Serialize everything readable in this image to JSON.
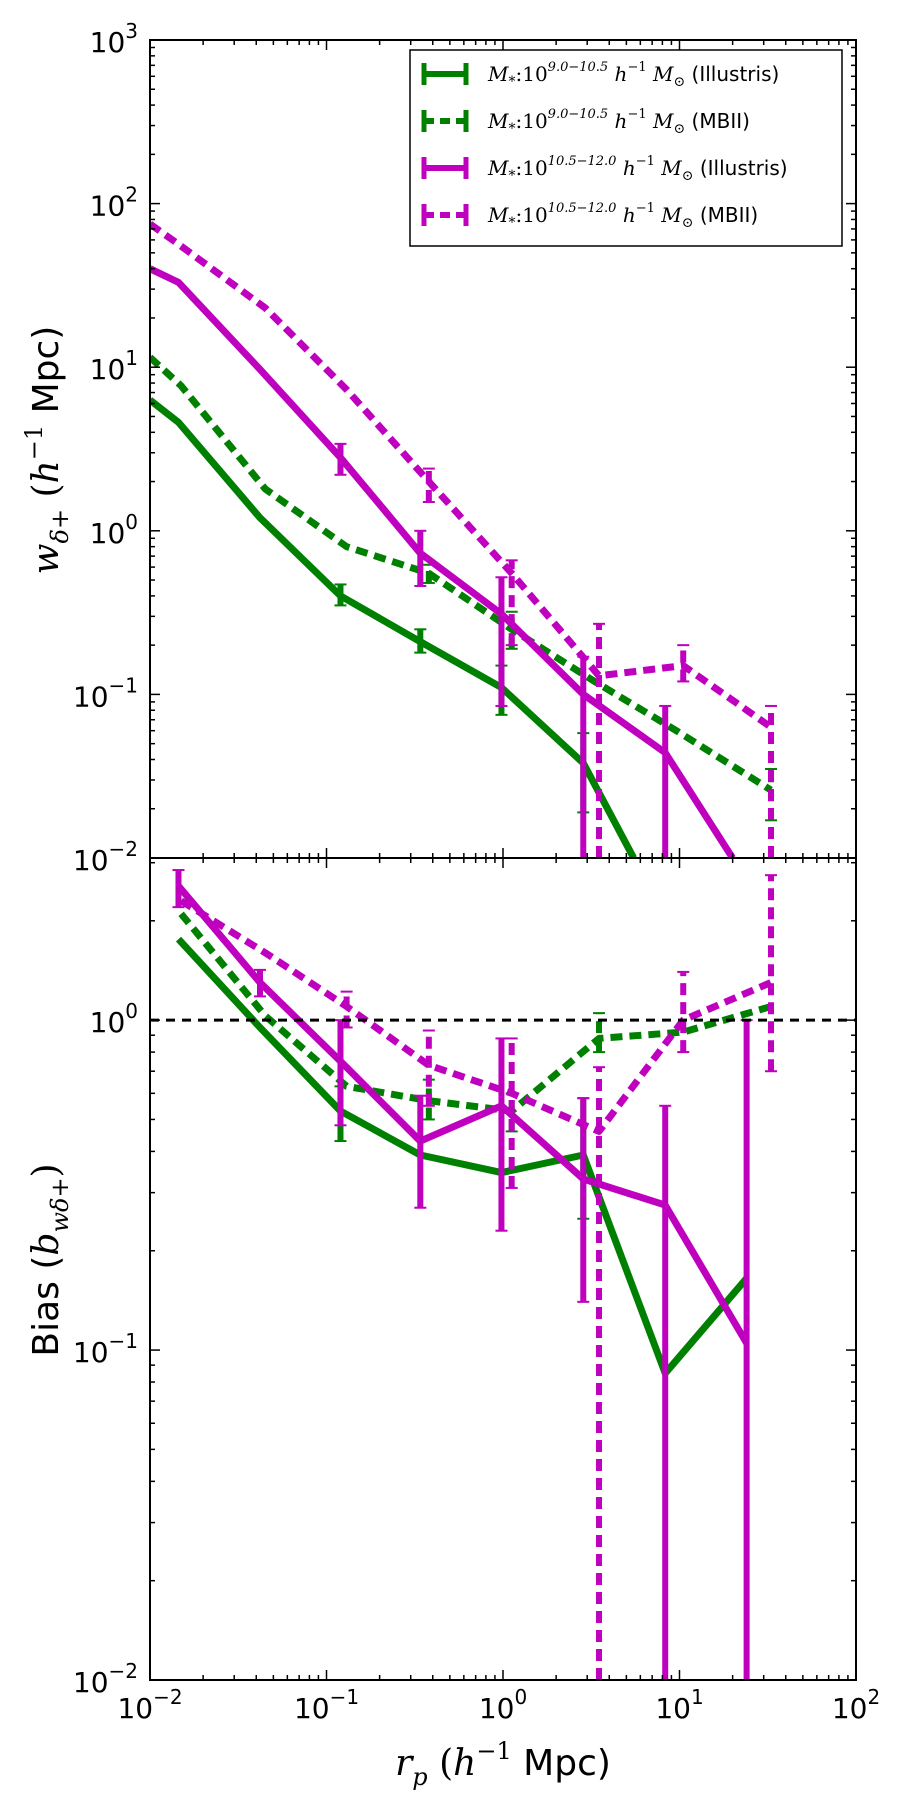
{
  "chart_data": [
    {
      "panel": "top",
      "type": "line",
      "xscale": "log",
      "yscale": "log",
      "xlim": [
        0.01,
        100
      ],
      "ylim": [
        0.01,
        1000
      ],
      "ylabel": "w_{δ+} (h^-1 Mpc)",
      "yticks": [
        "10^-2",
        "10^-1",
        "10^0",
        "10^1",
        "10^2",
        "10^3"
      ],
      "legend": {
        "placement": "top-right",
        "entries": [
          {
            "text": "M* : 10^{9.0-10.5} h^-1 M⊙ (Illustris)",
            "math": "M_*: 10",
            "sup": "9.0−10.5",
            "math2": " h",
            "sup2": "−1",
            "math3": " M",
            "sub3": "⊙",
            "tag": " (Illustris)",
            "series": 0
          },
          {
            "text": "M* : 10^{9.0-10.5} h^-1 M⊙ (MBII)",
            "math": "M_*: 10",
            "sup": "9.0−10.5",
            "math2": " h",
            "sup2": "−1",
            "math3": " M",
            "sub3": "⊙",
            "tag": " (MBII)",
            "series": 1
          },
          {
            "text": "M* : 10^{10.5-12.0} h^-1 M⊙ (Illustris)",
            "math": "M_*: 10",
            "sup": "10.5−12.0",
            "math2": " h",
            "sup2": "−1",
            "math3": " M",
            "sub3": "⊙",
            "tag": " (Illustris)",
            "series": 2
          },
          {
            "text": "M* : 10^{10.5-12.0} h^-1 M⊙ (MBII)",
            "math": "M_*: 10",
            "sup": "10.5−12.0",
            "math2": " h",
            "sup2": "−1",
            "math3": " M",
            "sub3": "⊙",
            "tag": " (MBII)",
            "series": 3
          }
        ]
      },
      "series": [
        {
          "name": "M* 10^9.0-10.5 (Illustris)",
          "color": "#008000",
          "style": "solid",
          "x": [
            0.01,
            0.0145,
            0.042,
            0.12,
            0.34,
            0.98,
            2.85,
            5.5
          ],
          "y": [
            6.3,
            4.6,
            1.2,
            0.4,
            0.21,
            0.11,
            0.038,
            0.01
          ],
          "err": [
            null,
            null,
            null,
            [
              0.35,
              0.47
            ],
            [
              0.18,
              0.25
            ],
            [
              0.075,
              0.15
            ],
            [
              0.019,
              0.058
            ],
            null
          ]
        },
        {
          "name": "M* 10^9.0-10.5 (MBII)",
          "color": "#008000",
          "style": "dotted",
          "x": [
            0.01,
            0.015,
            0.045,
            0.13,
            0.38,
            1.12,
            3.3,
            9.6,
            33
          ],
          "y": [
            11.5,
            7.7,
            1.8,
            0.8,
            0.55,
            0.25,
            0.12,
            0.06,
            0.026
          ],
          "err": [
            null,
            null,
            null,
            null,
            [
              0.48,
              0.62
            ],
            [
              0.19,
              0.32
            ],
            null,
            null,
            [
              0.017,
              0.035
            ]
          ]
        },
        {
          "name": "M* 10^10.5-12.0 (Illustris)",
          "color": "#bf00bf",
          "style": "solid",
          "x": [
            0.01,
            0.0145,
            0.042,
            0.12,
            0.34,
            0.98,
            2.85,
            8.3,
            20
          ],
          "y": [
            40,
            33,
            9.7,
            2.8,
            0.73,
            0.31,
            0.1,
            0.044,
            0.01
          ],
          "err": [
            null,
            null,
            null,
            [
              2.2,
              3.4
            ],
            [
              0.46,
              1.0
            ],
            [
              0.085,
              0.52
            ],
            [
              0.01,
              0.17
            ],
            [
              0.01,
              0.085
            ],
            null
          ]
        },
        {
          "name": "M* 10^10.5-12.0 (MBII)",
          "color": "#bf00bf",
          "style": "dotted",
          "x": [
            0.01,
            0.015,
            0.045,
            0.13,
            0.38,
            1.12,
            3.5,
            10.5,
            33
          ],
          "y": [
            75,
            55,
            23,
            7.3,
            2.0,
            0.55,
            0.13,
            0.15,
            0.063
          ],
          "err": [
            null,
            null,
            null,
            null,
            [
              1.5,
              2.4
            ],
            [
              0.2,
              0.66
            ],
            [
              0.01,
              0.27
            ],
            [
              0.12,
              0.2
            ],
            [
              0.01,
              0.085
            ]
          ]
        }
      ]
    },
    {
      "panel": "bottom",
      "type": "line",
      "xscale": "log",
      "yscale": "log",
      "xlim": [
        0.01,
        100
      ],
      "ylim": [
        0.01,
        3.1
      ],
      "xlabel": "r_p (h^-1 Mpc)",
      "ylabel": "Bias (b_{wδ+})",
      "xticks": [
        "10^-2",
        "10^-1",
        "10^0",
        "10^1",
        "10^2"
      ],
      "yticks": [
        "10^-2",
        "10^-1",
        "10^0"
      ],
      "reference_line": {
        "y": 1.0,
        "color": "#000000",
        "style": "dashed"
      },
      "series": [
        {
          "name": "M* 10^9.0-10.5 (Illustris)",
          "color": "#008000",
          "style": "solid",
          "x": [
            0.0145,
            0.042,
            0.12,
            0.34,
            0.98,
            2.85,
            8.3,
            24
          ],
          "y": [
            1.76,
            0.95,
            0.53,
            0.39,
            0.345,
            0.39,
            0.085,
            0.165
          ],
          "err": [
            null,
            null,
            [
              0.43,
              0.63
            ],
            null,
            null,
            [
              0.25,
              0.58
            ],
            null,
            null
          ]
        },
        {
          "name": "M* 10^9.0-10.5 (MBII)",
          "color": "#008000",
          "style": "dotted",
          "x": [
            0.015,
            0.045,
            0.13,
            0.38,
            1.12,
            3.5,
            10.5,
            33
          ],
          "y": [
            2.1,
            1.03,
            0.63,
            0.57,
            0.53,
            0.88,
            0.92,
            1.1
          ],
          "err": [
            null,
            null,
            null,
            [
              0.5,
              0.66
            ],
            [
              0.46,
              0.6
            ],
            [
              0.8,
              1.05
            ],
            null,
            null
          ]
        },
        {
          "name": "M* 10^10.5-12.0 (Illustris)",
          "color": "#bf00bf",
          "style": "solid",
          "x": [
            0.0145,
            0.042,
            0.12,
            0.34,
            0.98,
            2.85,
            8.3,
            24
          ],
          "y": [
            2.55,
            1.3,
            0.75,
            0.43,
            0.55,
            0.33,
            0.275,
            0.105
          ],
          "err": [
            [
              2.2,
              2.85
            ],
            [
              1.18,
              1.42
            ],
            [
              0.48,
              1.0
            ],
            [
              0.27,
              0.59
            ],
            [
              0.23,
              0.88
            ],
            [
              0.14,
              0.58
            ],
            [
              0.01,
              0.55
            ],
            [
              0.01,
              1.0
            ]
          ]
        },
        {
          "name": "M* 10^10.5-12.0 (MBII)",
          "color": "#bf00bf",
          "style": "dotted",
          "x": [
            0.015,
            0.045,
            0.13,
            0.38,
            1.12,
            3.5,
            10.5,
            33
          ],
          "y": [
            2.3,
            1.6,
            1.1,
            0.73,
            0.6,
            0.46,
            1.0,
            1.3
          ],
          "err": [
            null,
            null,
            [
              0.95,
              1.22
            ],
            [
              0.55,
              0.93
            ],
            [
              0.31,
              0.88
            ],
            [
              0.01,
              0.72
            ],
            [
              0.8,
              1.4
            ],
            [
              0.7,
              2.75
            ]
          ]
        }
      ]
    }
  ]
}
